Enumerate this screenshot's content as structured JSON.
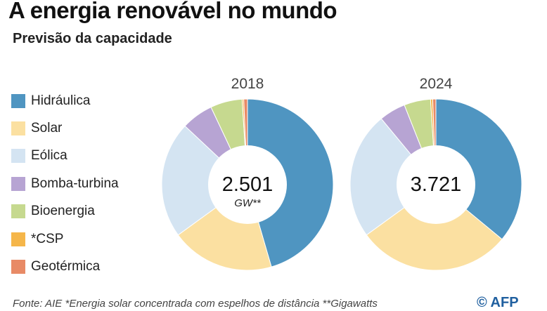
{
  "header": {
    "title": "A energia renovável no mundo",
    "subtitle": "Previsão da capacidade"
  },
  "legend": [
    {
      "label": "Hidráulica",
      "color": "#4f95c1"
    },
    {
      "label": "Solar",
      "color": "#fbe0a1"
    },
    {
      "label": "Eólica",
      "color": "#d4e4f2"
    },
    {
      "label": "Bomba-turbina",
      "color": "#b7a4d3"
    },
    {
      "label": "Bioenergia",
      "color": "#c6d98f"
    },
    {
      "label": "*CSP",
      "color": "#f5b64a"
    },
    {
      "label": "Geotérmica",
      "color": "#e88a66"
    }
  ],
  "chart_data": [
    {
      "type": "pie",
      "title": "2018",
      "center_value": "2.501",
      "center_unit": "GW**",
      "categories": [
        "Hidráulica",
        "Solar",
        "Eólica",
        "Bomba-turbina",
        "Bioenergia",
        "*CSP",
        "Geotérmica"
      ],
      "values": [
        45.5,
        19.5,
        22.0,
        6.0,
        6.0,
        0.3,
        0.7
      ],
      "unit": "% of capacity (estimated)"
    },
    {
      "type": "pie",
      "title": "2024",
      "center_value": "3.721",
      "center_unit": "",
      "categories": [
        "Hidráulica",
        "Solar",
        "Eólica",
        "Bomba-turbina",
        "Bioenergia",
        "*CSP",
        "Geotérmica"
      ],
      "values": [
        36.0,
        29.0,
        24.0,
        5.0,
        5.0,
        0.4,
        0.6
      ],
      "unit": "% of capacity (estimated)"
    }
  ],
  "footer": {
    "text": "Fonte: AIE     *Energia solar concentrada com espelhos de distância     **Gigawatts",
    "logo": "© AFP"
  }
}
